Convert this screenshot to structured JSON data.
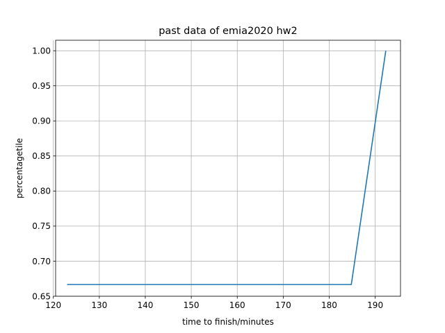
{
  "chart_data": {
    "type": "line",
    "title": "past data of emia2020 hw2",
    "xlabel": "time to finish/minutes",
    "ylabel": "percentagetile",
    "xlim": [
      120.5,
      195.5
    ],
    "ylim": [
      0.65,
      1.015
    ],
    "xticks": [
      120,
      130,
      140,
      150,
      160,
      170,
      180,
      190
    ],
    "yticks": [
      0.65,
      0.7,
      0.75,
      0.8,
      0.85,
      0.9,
      0.95,
      1.0
    ],
    "xtick_labels": [
      "120",
      "130",
      "140",
      "150",
      "160",
      "170",
      "180",
      "190"
    ],
    "ytick_labels": [
      "0.65",
      "0.70",
      "0.75",
      "0.80",
      "0.85",
      "0.90",
      "0.95",
      "1.00"
    ],
    "grid": true,
    "series": [
      {
        "color": "#1f77b4",
        "x": [
          123,
          184.8,
          192.3
        ],
        "y": [
          0.6667,
          0.6667,
          1.0
        ]
      }
    ]
  }
}
